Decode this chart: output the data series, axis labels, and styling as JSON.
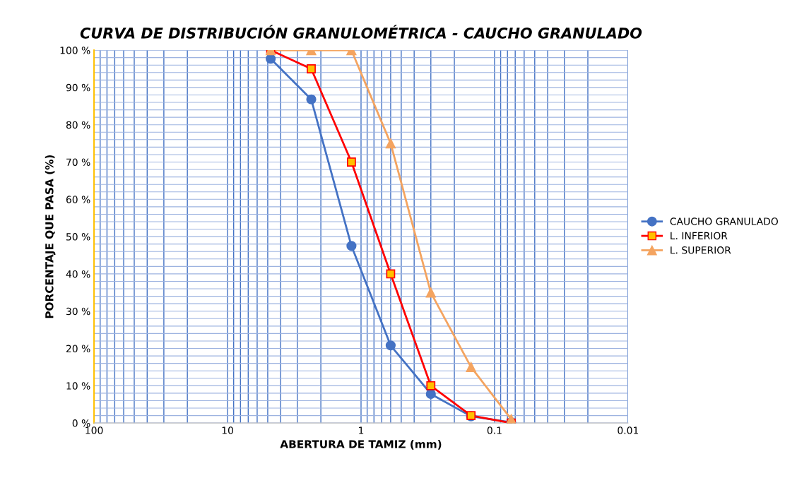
{
  "chart_data": {
    "type": "line",
    "title": "CURVA DE DISTRIBUCIÓN GRANULOMÉTRICA - CAUCHO GRANULADO",
    "xlabel": "ABERTURA DE TAMIZ (mm)",
    "ylabel": "PORCENTAJE QUE PASA (%)",
    "x": [
      4.75,
      2.36,
      1.18,
      0.6,
      0.3,
      0.15,
      0.075
    ],
    "series": [
      {
        "name": "CAUCHO GRANULADO",
        "color": "#4472c4",
        "marker": "circle",
        "values": [
          97.7,
          86.8,
          47.5,
          20.8,
          7.8,
          1.8,
          0.2
        ]
      },
      {
        "name": "L. INFERIOR",
        "color": "#ff0000",
        "marker": "square",
        "values": [
          100,
          95,
          70,
          40,
          10,
          2,
          0
        ]
      },
      {
        "name": "L. SUPERIOR",
        "color": "#f4a460",
        "marker": "triangle",
        "values": [
          100,
          100,
          100,
          75,
          35,
          15,
          1
        ]
      }
    ],
    "log": "x",
    "xlim": [
      100,
      0.01
    ],
    "xticks": [
      100,
      10,
      1,
      0.1,
      0.01
    ],
    "ylim": [
      0,
      100
    ],
    "yticks": [
      {
        "value": 0,
        "label": "0 %"
      },
      {
        "value": 10,
        "label": "10 %"
      },
      {
        "value": 20,
        "label": "20 %"
      },
      {
        "value": 30,
        "label": "30 %"
      },
      {
        "value": 40,
        "label": "40 %"
      },
      {
        "value": 50,
        "label": "50 %"
      },
      {
        "value": 60,
        "label": "60 %"
      },
      {
        "value": 70,
        "label": "70 %"
      },
      {
        "value": 80,
        "label": "80 %"
      },
      {
        "value": 90,
        "label": "90 %"
      },
      {
        "value": 100,
        "label": "100 %"
      }
    ],
    "grid": true,
    "legend": "right"
  }
}
